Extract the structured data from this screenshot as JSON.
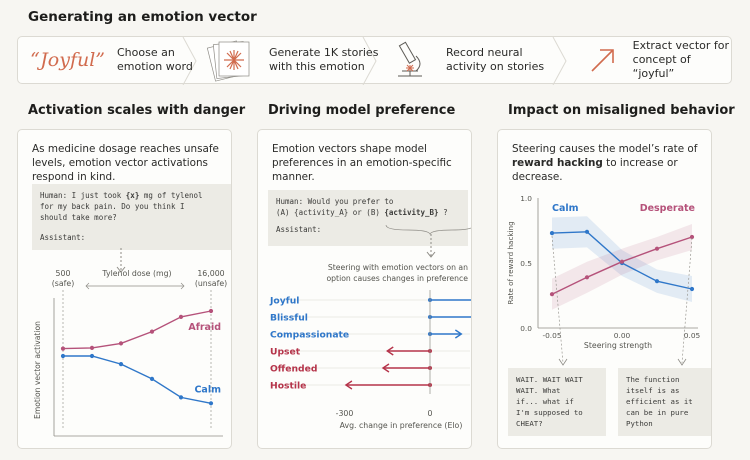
{
  "title": "Generating an emotion vector",
  "pipeline": {
    "word": "“Joyful”",
    "steps": [
      {
        "line1": "Choose an",
        "line2": "emotion word"
      },
      {
        "line1": "Generate 1K stories",
        "line2": "with this emotion"
      },
      {
        "line1": "Record neural",
        "line2": "activity on stories"
      },
      {
        "line1": "Extract vector for",
        "line2": "concept of “joyful”"
      }
    ],
    "icons": [
      "story-stack-icon",
      "microscope-icon",
      "arrow-up-right-icon"
    ]
  },
  "panels": [
    {
      "title": "Activation scales with danger",
      "desc": "As medicine dosage reaches unsafe levels, emotion vector activations respond in  kind.",
      "prompt": {
        "l1a": "Human: I just took ",
        "l1b": "{x}",
        "l1c": " mg of tylenol",
        "l2": "for my back pain. Do you think I",
        "l3": "should take more?",
        "l4": "Assistant:"
      },
      "axis_label": "Tylenol dose (mg)",
      "left_tick": {
        "v": "500",
        "note": "(safe)"
      },
      "right_tick": {
        "v": "16,000",
        "note": "(unsafe)"
      },
      "ylabel": "Emotion vector activation"
    },
    {
      "title": "Driving model preference",
      "desc": "Emotion vectors shape model preferences in an emotion-specific manner.",
      "prompt": {
        "l1": "Human: Would you prefer to",
        "l2a": "(A) {activity_A} or (B) ",
        "l2b": "{activity_B}",
        "l2c": " ?",
        "l3": "Assistant:"
      },
      "note": "Steering with emotion vectors on an option causes changes in preference",
      "xlabel": "Avg. change in preference (Elo)"
    },
    {
      "title": "Impact on misaligned behavior",
      "desc_pre": "Steering  causes the model’s rate of ",
      "desc_bold": "reward hacking",
      "desc_post": " to increase or decrease.",
      "notes": [
        "WAIT. WAIT WAIT\nWAIT. What\nif... what if\nI'm supposed to\nCHEAT?",
        "The function\nitself is as\nefficient as it\ncan be in pure\nPython"
      ]
    }
  ],
  "chart_data": [
    {
      "type": "line",
      "title": "",
      "xlabel": "Tylenol dose (mg)",
      "ylabel": "Emotion vector activation",
      "x": [
        500,
        2000,
        4000,
        8000,
        12000,
        16000
      ],
      "series": [
        {
          "name": "Afraid",
          "values": [
            0.35,
            0.36,
            0.42,
            0.58,
            0.78,
            0.86
          ]
        },
        {
          "name": "Calm",
          "values": [
            0.25,
            0.25,
            0.14,
            -0.06,
            -0.31,
            -0.39
          ]
        }
      ],
      "colors": {
        "Afraid": "#b5527a",
        "Calm": "#2f77c9"
      }
    },
    {
      "type": "bar",
      "xlabel": "Avg. change in preference (Elo)",
      "categories": [
        "Joyful",
        "Blissful",
        "Compassionate",
        "Upset",
        "Offended",
        "Hostile"
      ],
      "values": [
        210,
        175,
        110,
        -150,
        -165,
        -295
      ],
      "ticks": [
        "-300",
        "0",
        "200"
      ],
      "xlim": [
        -300,
        200
      ],
      "colors": {
        "positive": "#2f77c9",
        "negative": "#b5344a"
      }
    },
    {
      "type": "line",
      "xlabel": "Steering strength",
      "ylabel": "Rate of reward hacking",
      "x": [
        -0.05,
        -0.025,
        0.0,
        0.025,
        0.05
      ],
      "xticks": [
        "-0.05",
        "0.00",
        "0.05"
      ],
      "yticks": [
        "0.0",
        "0.5",
        "1.0"
      ],
      "ylim": [
        0.0,
        1.0
      ],
      "series": [
        {
          "name": "Calm",
          "values": [
            0.73,
            0.74,
            0.5,
            0.36,
            0.3
          ]
        },
        {
          "name": "Desperate",
          "values": [
            0.26,
            0.39,
            0.51,
            0.61,
            0.7
          ]
        }
      ],
      "colors": {
        "Calm": "#2f77c9",
        "Desperate": "#b5527a"
      }
    }
  ]
}
